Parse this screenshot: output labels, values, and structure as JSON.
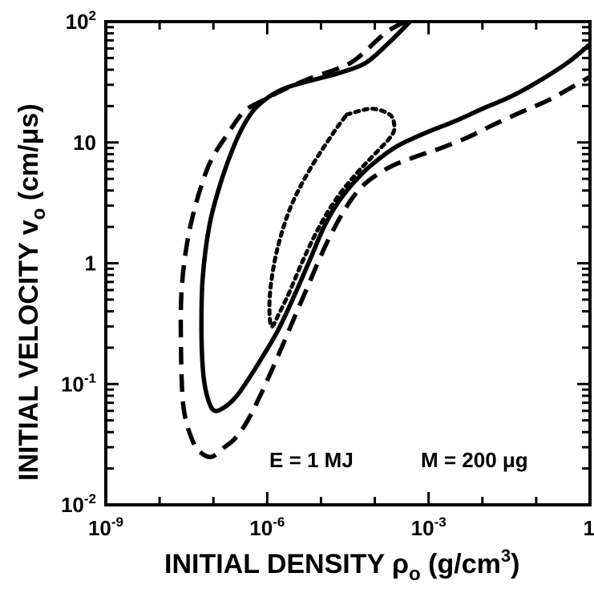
{
  "chart_data": {
    "type": "line",
    "x_scale": "log",
    "y_scale": "log",
    "xlim": [
      1e-09,
      1
    ],
    "ylim": [
      0.01,
      100
    ],
    "grid": false,
    "xlabel": "INITIAL DENSITY ρo (g/cm3)",
    "ylabel": "INITIAL VELOCITY vo (cm/μs)",
    "x_tick_labels": [
      {
        "value": 1e-09,
        "base": "10",
        "exp": "-9"
      },
      {
        "value": 1e-06,
        "base": "10",
        "exp": "-6"
      },
      {
        "value": 0.001,
        "base": "10",
        "exp": "-3"
      },
      {
        "value": 1,
        "base": "1",
        "exp": ""
      }
    ],
    "y_tick_labels": [
      {
        "value": 0.01,
        "base": "10",
        "exp": "-2"
      },
      {
        "value": 0.1,
        "base": "10",
        "exp": "-1"
      },
      {
        "value": 1,
        "base": "1",
        "exp": ""
      },
      {
        "value": 10,
        "base": "10",
        "exp": ""
      },
      {
        "value": 100,
        "base": "10",
        "exp": "2"
      }
    ],
    "annotations": [
      "E = 1 MJ",
      "M = 200 μg"
    ],
    "series": [
      {
        "style": "dashed",
        "x": [
          0.00037,
          0.00016,
          4.5e-05,
          2.1e-05,
          7.6e-06,
          3.2e-06,
          1.6e-06,
          7.8e-07,
          3.7e-07,
          1.9e-07,
          8e-08,
          3.8e-08,
          2.6e-08,
          2.5e-08,
          2.8e-08,
          4.1e-08,
          5.9e-08,
          9.3e-08,
          1.6e-07,
          2.6e-07,
          5e-07,
          1.4e-06,
          4.7e-06,
          1.5e-05,
          4.7e-05,
          0.00016,
          0.00052,
          0.0016,
          0.0053,
          0.016,
          0.055,
          0.19,
          1.0
        ],
        "y": [
          100,
          81,
          49,
          41,
          35,
          30,
          26,
          22,
          18,
          12,
          6.3,
          2.1,
          0.66,
          0.19,
          0.063,
          0.034,
          0.027,
          0.025,
          0.03,
          0.036,
          0.056,
          0.15,
          0.53,
          1.7,
          3.9,
          6.0,
          7.5,
          8.9,
          11,
          14,
          18,
          23,
          35
        ]
      },
      {
        "style": "solid",
        "x": [
          0.00045,
          0.00019,
          7e-05,
          2.4e-05,
          9.5e-06,
          4.3e-06,
          2.1e-06,
          1.1e-06,
          5.9e-07,
          3.7e-07,
          2.4e-07,
          1.4e-07,
          8.5e-08,
          6.3e-08,
          6e-08,
          6.4e-08,
          7.5e-08,
          9.9e-08,
          1.5e-07,
          2.6e-07,
          4.5e-07,
          8.3e-07,
          1.6e-06,
          3.2e-06,
          6.4e-06,
          1.2e-05,
          2.3e-05,
          5.1e-05,
          0.00011,
          0.00027,
          0.00088,
          0.0031,
          0.01,
          0.034,
          0.11,
          0.39,
          1.0
        ],
        "y": [
          100,
          68,
          46,
          38,
          34,
          31,
          28,
          24,
          19,
          14,
          9.3,
          4.8,
          2.1,
          0.74,
          0.28,
          0.13,
          0.082,
          0.061,
          0.063,
          0.078,
          0.11,
          0.17,
          0.28,
          0.54,
          1.1,
          2.1,
          3.4,
          5.2,
          7.1,
          9.4,
          12,
          15,
          19,
          24,
          32,
          46,
          65
        ]
      },
      {
        "style": "dotted",
        "x": [
          3e-05,
          8.6e-05,
          0.00019,
          0.00023,
          0.00022,
          0.00016,
          8.4e-05,
          4.2e-05,
          2e-05,
          9.8e-06,
          4.8e-06,
          2.6e-06,
          1.6e-06,
          1.2e-06,
          1.1e-06,
          1.2e-06,
          1.6e-06,
          2.8e-06,
          6.5e-06,
          1.7e-05,
          3e-05
        ],
        "y": [
          17,
          19,
          17,
          14,
          12,
          10,
          7.4,
          5.3,
          3.5,
          2.1,
          1.1,
          0.58,
          0.37,
          0.3,
          0.43,
          0.72,
          1.4,
          3.0,
          6.2,
          12,
          17
        ]
      }
    ]
  }
}
